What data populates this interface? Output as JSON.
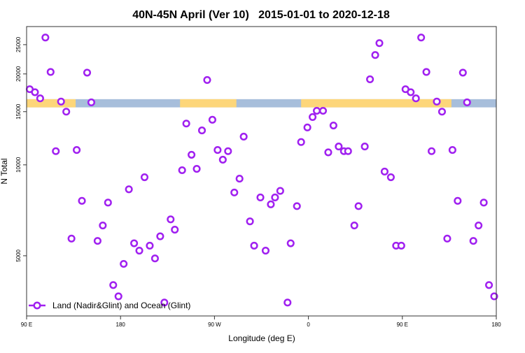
{
  "chart_data": {
    "type": "scatter",
    "title": "40N-45N April (Ver 10)   2015-01-01 to 2020-12-18",
    "xlabel": "Longitude (deg E)",
    "ylabel": "N Total",
    "x_axis": {
      "range_deg": [
        90,
        540
      ],
      "wraps_longitude": true,
      "ticks": [
        {
          "value": 90,
          "label": "90 E"
        },
        {
          "value": 180,
          "label": "180"
        },
        {
          "value": 270,
          "label": "90 W"
        },
        {
          "value": 360,
          "label": "0"
        },
        {
          "value": 450,
          "label": "90 E"
        },
        {
          "value": 540,
          "label": "180"
        }
      ]
    },
    "y_axis": {
      "scale": "log",
      "range": [
        3160,
        28700
      ],
      "ticks": [
        5000,
        10000,
        15000,
        20000,
        25000
      ]
    },
    "grid": false,
    "legend": {
      "placement": "bottom-left",
      "entries": [
        "Land (Nadir&Glint) and Ocean (Glint)"
      ]
    },
    "colors": {
      "series": "#a020f0",
      "land": "#fdd67a",
      "ocean": "#a7bedb"
    },
    "surface_band": {
      "value_range": [
        15500,
        16500
      ],
      "land_segments_lon": [
        [
          -123,
          -69
        ],
        [
          -7,
          137
        ]
      ]
    },
    "series": [
      {
        "name": "Land (Nadir&Glint) and Ocean (Glint)",
        "lon": [
          93,
          98,
          103,
          108,
          113,
          118,
          123,
          128,
          133,
          138,
          143,
          148,
          152,
          158,
          163,
          168,
          173,
          178,
          -177,
          -172,
          -167,
          -162,
          -157,
          -152,
          -147,
          -142,
          -138,
          -132,
          -128,
          -121,
          -117,
          -112,
          -107,
          -102,
          -97,
          -92,
          -87,
          -82,
          -77,
          -71,
          -66,
          -62,
          -56,
          -52,
          -46,
          -41,
          -36,
          -32,
          -27,
          -20,
          -17,
          -11,
          -7,
          -1,
          4,
          8,
          14,
          19,
          24,
          29,
          34,
          38,
          44,
          48,
          54,
          59,
          64,
          68,
          73,
          79,
          84,
          89
        ],
        "n_total": [
          17800,
          17400,
          16600,
          26400,
          20300,
          11100,
          16200,
          15000,
          5700,
          11200,
          7600,
          20200,
          16100,
          5600,
          6300,
          7500,
          4000,
          3670,
          4700,
          8300,
          5500,
          5200,
          9100,
          5400,
          4900,
          5800,
          3500,
          6600,
          6100,
          9600,
          13700,
          10800,
          9700,
          13000,
          19100,
          14100,
          11200,
          10400,
          11100,
          8100,
          9000,
          12400,
          6500,
          5400,
          7800,
          5200,
          7400,
          7800,
          8200,
          3500,
          5500,
          7300,
          11900,
          13300,
          14400,
          15100,
          15100,
          11000,
          13500,
          11500,
          11100,
          11100,
          6300,
          7300,
          11500,
          19200,
          23100,
          25300,
          9500,
          9100,
          5400,
          5400
        ]
      }
    ]
  }
}
